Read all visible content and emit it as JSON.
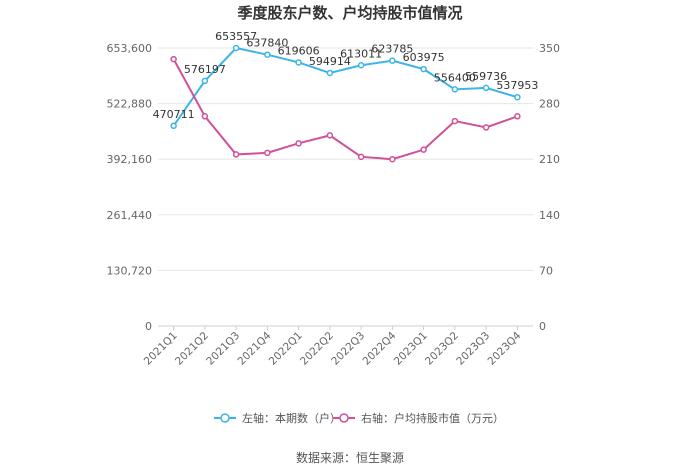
{
  "chart_data": {
    "type": "line",
    "title": "季度股东户数、户均持股市值情况",
    "categories": [
      "2021Q1",
      "2021Q2",
      "2021Q3",
      "2021Q4",
      "2022Q1",
      "2022Q2",
      "2022Q3",
      "2022Q4",
      "2023Q1",
      "2023Q2",
      "2023Q3",
      "2023Q4"
    ],
    "left_axis": {
      "ylim": [
        0,
        653600
      ],
      "ticks": [
        0,
        130720,
        261440,
        392160,
        522880,
        653600
      ],
      "tick_labels": [
        "0",
        "130,720",
        "261,440",
        "392,160",
        "522,880",
        "653,600"
      ]
    },
    "right_axis": {
      "ylim": [
        0,
        350
      ],
      "ticks": [
        0,
        70,
        140,
        210,
        280,
        350
      ],
      "tick_labels": [
        "0",
        "70",
        "140",
        "210",
        "280",
        "350"
      ]
    },
    "series": [
      {
        "name": "左轴：本期数（户）",
        "axis": "left",
        "color": "#3db5e6",
        "values": [
          470711,
          576197,
          653557,
          637840,
          619606,
          594914,
          613011,
          623785,
          603975,
          556400,
          559736,
          537953
        ],
        "labels": [
          "470711",
          "576197",
          "653557",
          "637840",
          "619606",
          "594914",
          "613011",
          "623785",
          "603975",
          "556400",
          "559736",
          "537953"
        ]
      },
      {
        "name": "右轴：户均持股市值（万元）",
        "axis": "right",
        "color": "#d0509a",
        "values": [
          336,
          264,
          216,
          218,
          230,
          240,
          213,
          210,
          222,
          258,
          250,
          264
        ]
      }
    ],
    "grid": true,
    "legend_position": "bottom",
    "source": "数据来源：恒生聚源"
  }
}
